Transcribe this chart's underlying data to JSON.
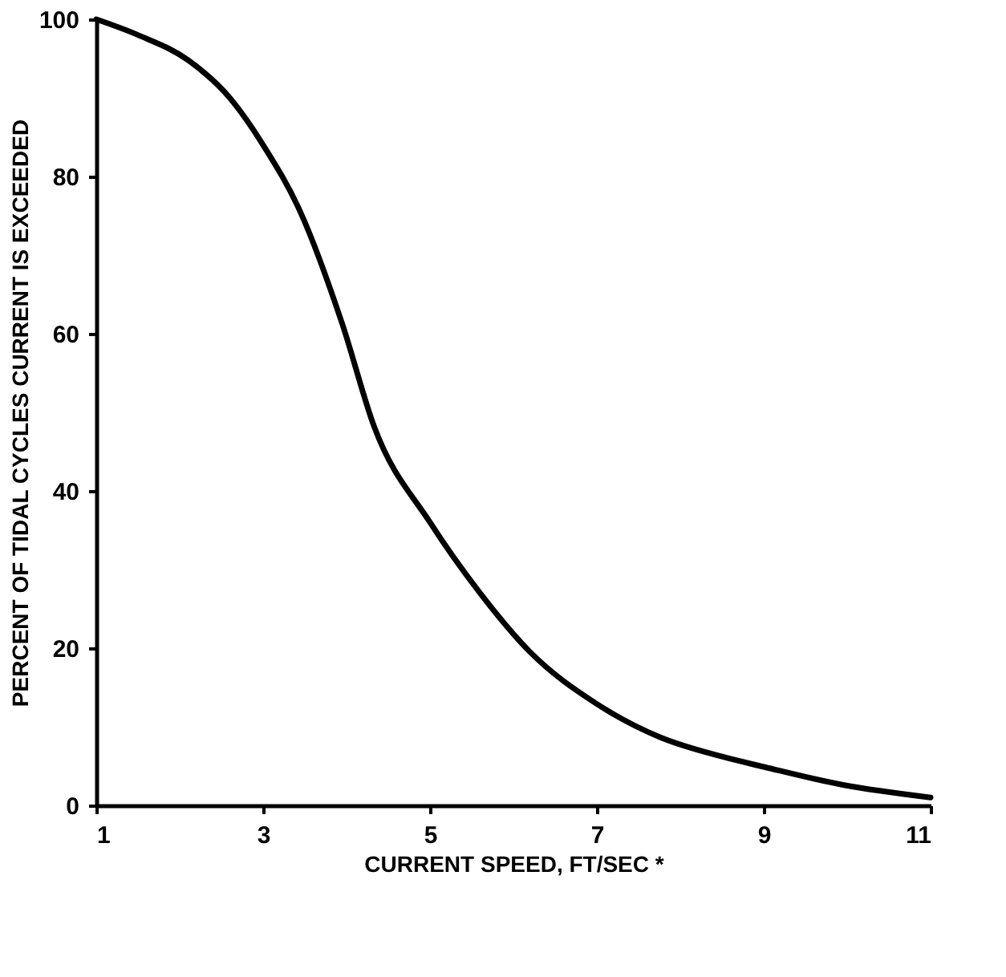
{
  "chart_data": {
    "type": "line",
    "xlabel": "CURRENT SPEED, FT/SEC *",
    "ylabel": "PERCENT OF TIDAL CYCLES CURRENT IS EXCEEDED",
    "x": [
      1,
      1.5,
      2.1,
      2.6,
      3,
      3.45,
      3.95,
      4.33,
      5,
      5.6,
      6.2,
      7,
      7.75,
      8.5,
      9,
      9.95,
      11
    ],
    "series": [
      {
        "color": "#000000",
        "values": [
          100,
          98,
          94.8,
          90,
          84,
          75.4,
          61.2,
          48.2,
          36,
          27,
          19.5,
          12.9,
          8.7,
          6.2,
          4.9,
          2.6,
          1
        ]
      }
    ],
    "xlim": [
      1,
      11
    ],
    "xticks": [
      1,
      3,
      5,
      7,
      9,
      11
    ],
    "ylim": [
      0,
      100
    ],
    "yticks": [
      0,
      20,
      40,
      60,
      80,
      100
    ],
    "grid": false,
    "marker": "none",
    "line_style": "solid"
  }
}
